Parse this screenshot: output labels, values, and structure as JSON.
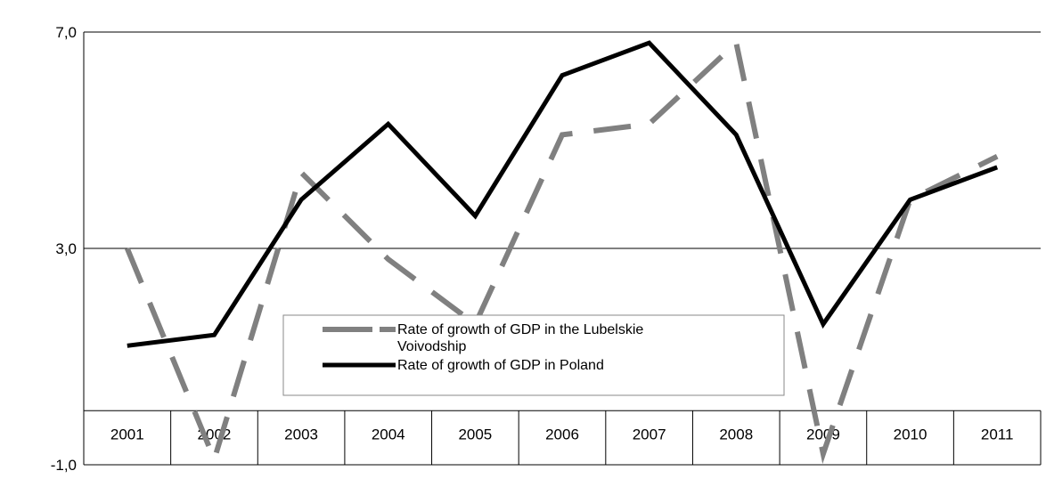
{
  "chart_data": {
    "type": "line",
    "categories": [
      "2001",
      "2002",
      "2003",
      "2004",
      "2005",
      "2006",
      "2007",
      "2008",
      "2009",
      "2010",
      "2011"
    ],
    "series": [
      {
        "name": "Rate of growth of  GDP in the Lubelskie Voivodship",
        "values": [
          3.0,
          -0.9,
          4.4,
          2.8,
          1.6,
          5.1,
          5.3,
          6.8,
          -0.8,
          3.9,
          4.7
        ],
        "color": "#808080",
        "style": "dashed"
      },
      {
        "name": "Rate of growth of GDP in Poland",
        "values": [
          1.2,
          1.4,
          3.9,
          5.3,
          3.6,
          6.2,
          6.8,
          5.1,
          1.6,
          3.9,
          4.5
        ],
        "color": "#000000",
        "style": "solid"
      }
    ],
    "legend_lines": [
      [
        "Rate of growth of  GDP in the Lubelskie",
        "Voivodship"
      ],
      [
        "Rate of growth of GDP in Poland"
      ]
    ],
    "yticks": [
      "7,0",
      "3,0",
      "-1,0"
    ],
    "ytick_values": [
      7,
      3,
      -1
    ],
    "ylim": [
      -1,
      7
    ],
    "category_axis_at": 0,
    "grid": "horizontal",
    "legend_position": "center-left"
  }
}
